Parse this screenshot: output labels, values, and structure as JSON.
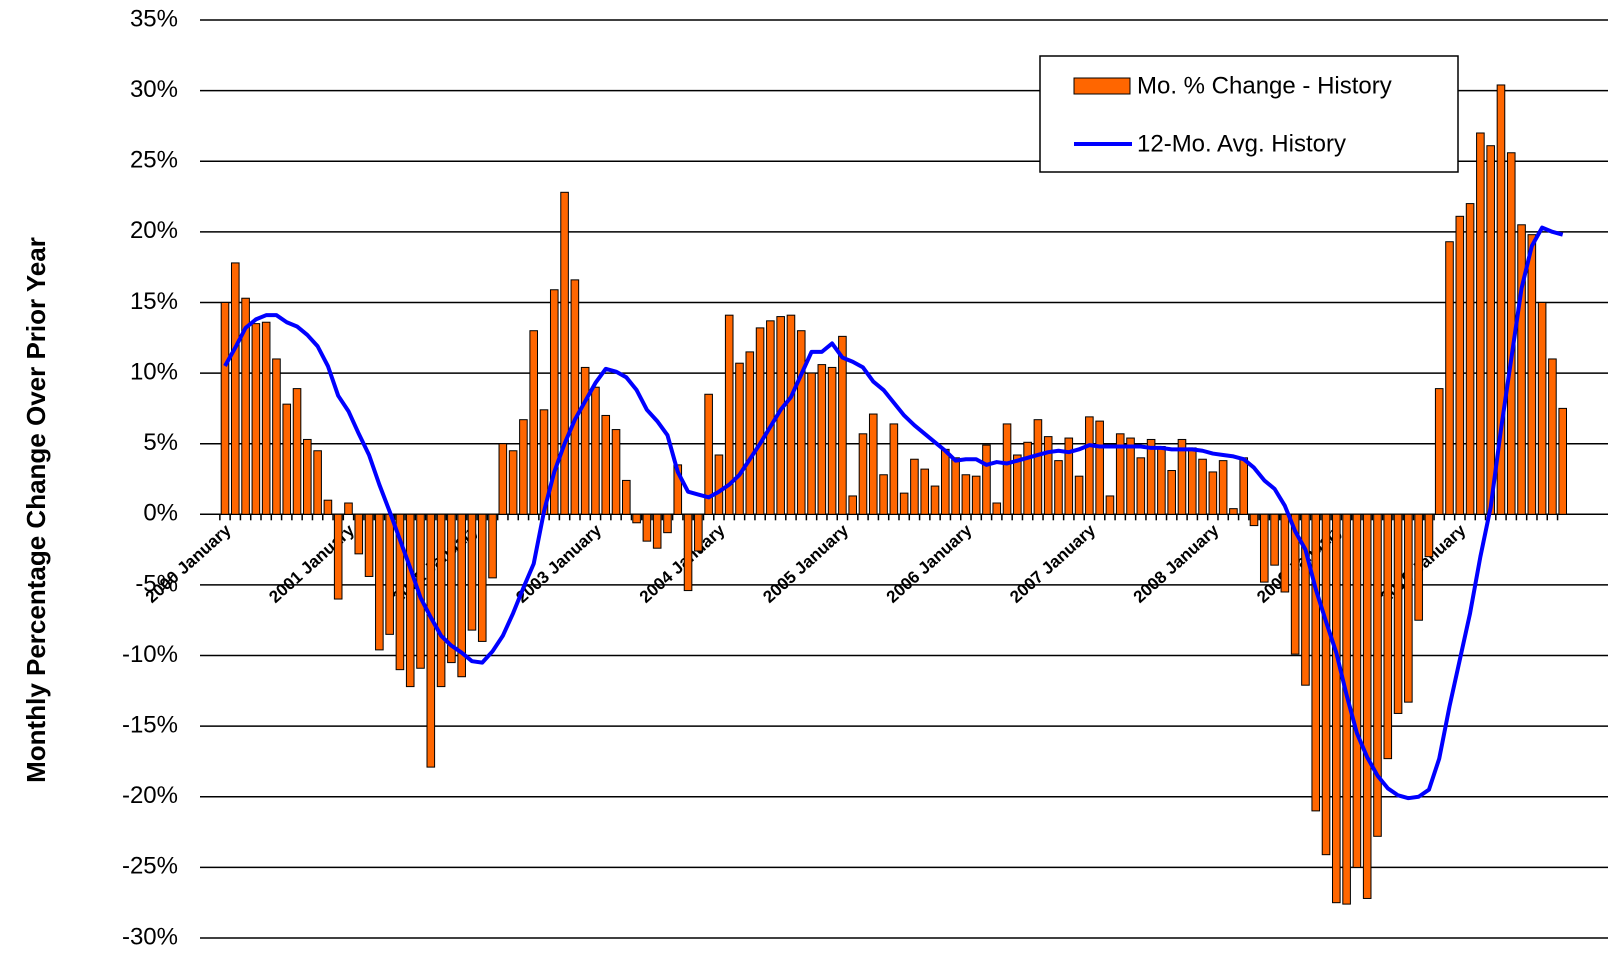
{
  "chart_data": {
    "type": "bar_line",
    "ylabel": "Monthly Percentage Change Over Prior Year",
    "categories": [
      "2000 January",
      null,
      null,
      null,
      null,
      null,
      null,
      null,
      null,
      null,
      null,
      null,
      "2001 January",
      null,
      null,
      null,
      null,
      null,
      null,
      null,
      null,
      null,
      null,
      null,
      "2002 January",
      null,
      null,
      null,
      null,
      null,
      null,
      null,
      null,
      null,
      null,
      null,
      "2003 January",
      null,
      null,
      null,
      null,
      null,
      null,
      null,
      null,
      null,
      null,
      null,
      "2004 January",
      null,
      null,
      null,
      null,
      null,
      null,
      null,
      null,
      null,
      null,
      null,
      "2005 January",
      null,
      null,
      null,
      null,
      null,
      null,
      null,
      null,
      null,
      null,
      null,
      "2006 January",
      null,
      null,
      null,
      null,
      null,
      null,
      null,
      null,
      null,
      null,
      null,
      "2007 January",
      null,
      null,
      null,
      null,
      null,
      null,
      null,
      null,
      null,
      null,
      null,
      "2008 January",
      null,
      null,
      null,
      null,
      null,
      null,
      null,
      null,
      null,
      null,
      null,
      "2009 January",
      null,
      null,
      null,
      null,
      null,
      null,
      null,
      null,
      null,
      null,
      null,
      "2010 January",
      null,
      null,
      null,
      null,
      null,
      null,
      null,
      null,
      null,
      null
    ],
    "series": [
      {
        "name": "Mo. % Change - History",
        "kind": "bar",
        "color": "#ff6600",
        "values": [
          15.0,
          17.8,
          15.3,
          13.5,
          13.6,
          11.0,
          7.8,
          8.9,
          5.3,
          4.5,
          1.0,
          -6.0,
          0.8,
          -2.8,
          -4.4,
          -9.6,
          -8.5,
          -11.0,
          -12.2,
          -10.9,
          -17.9,
          -12.2,
          -10.5,
          -11.5,
          -8.2,
          -9.0,
          -4.5,
          5.0,
          4.5,
          6.7,
          13.0,
          7.4,
          15.9,
          22.8,
          16.6,
          10.4,
          9.0,
          7.0,
          6.0,
          2.4,
          -0.6,
          -1.9,
          -2.4,
          -1.3,
          3.5,
          -5.4,
          -2.6,
          8.5,
          4.2,
          14.1,
          10.7,
          11.5,
          13.2,
          13.7,
          14.0,
          14.1,
          13.0,
          10.0,
          10.6,
          10.4,
          12.6,
          1.3,
          5.7,
          7.1,
          2.8,
          6.4,
          1.5,
          3.9,
          3.2,
          2.0,
          4.6,
          4.0,
          2.8,
          2.7,
          4.9,
          0.8,
          6.4,
          4.2,
          5.1,
          6.7,
          5.5,
          3.8,
          5.4,
          2.7,
          6.9,
          6.6,
          1.3,
          5.7,
          5.4,
          4.0,
          5.3,
          4.8,
          3.1,
          5.3,
          4.7,
          3.9,
          3.0,
          3.8,
          0.4,
          4.0,
          -0.8,
          -4.8,
          -3.6,
          -5.5,
          -9.9,
          -12.1,
          -21.0,
          -24.1,
          -27.5,
          -27.6,
          -25.0,
          -27.2,
          -22.8,
          -17.3,
          -14.1,
          -13.3,
          -7.5,
          -3.0,
          8.9,
          19.3,
          21.1,
          22.0,
          27.0,
          26.1,
          30.4,
          25.6,
          20.5,
          19.8,
          15.0,
          11.0,
          7.5
        ]
      },
      {
        "name": "12-Mo. Avg. History",
        "kind": "line",
        "color": "#0000ff",
        "values": [
          10.5,
          11.8,
          13.2,
          13.8,
          14.1,
          14.1,
          13.6,
          13.3,
          12.7,
          11.9,
          10.5,
          8.4,
          7.3,
          5.7,
          4.2,
          2.1,
          0.2,
          -1.8,
          -3.8,
          -5.9,
          -7.3,
          -8.6,
          -9.3,
          -9.8,
          -10.4,
          -10.5,
          -9.7,
          -8.6,
          -7.0,
          -5.2,
          -3.5,
          0.2,
          3.0,
          5.0,
          6.7,
          8.0,
          9.3,
          10.3,
          10.1,
          9.7,
          8.8,
          7.4,
          6.6,
          5.6,
          3.0,
          1.6,
          1.4,
          1.2,
          1.6,
          2.1,
          2.8,
          3.9,
          5.0,
          6.2,
          7.4,
          8.3,
          9.9,
          11.5,
          11.5,
          12.1,
          11.1,
          10.8,
          10.4,
          9.4,
          8.8,
          7.9,
          7.0,
          6.3,
          5.7,
          5.1,
          4.5,
          3.8,
          3.9,
          3.9,
          3.5,
          3.7,
          3.6,
          3.8,
          4.0,
          4.2,
          4.4,
          4.5,
          4.4,
          4.6,
          4.9,
          4.8,
          4.8,
          4.8,
          4.8,
          4.8,
          4.7,
          4.7,
          4.6,
          4.6,
          4.6,
          4.5,
          4.3,
          4.2,
          4.1,
          3.9,
          3.3,
          2.4,
          1.8,
          0.6,
          -1.2,
          -2.5,
          -5.3,
          -7.6,
          -9.8,
          -12.8,
          -15.5,
          -17.2,
          -18.5,
          -19.4,
          -19.9,
          -20.1,
          -20.0,
          -19.5,
          -17.3,
          -13.6,
          -10.3,
          -7.0,
          -3.0,
          0.5,
          6.0,
          11.0,
          16.0,
          19.0,
          20.3,
          20.0,
          19.8
        ]
      }
    ],
    "ylim": [
      -30,
      35
    ],
    "yticks": [
      {
        "value": -30,
        "label": "-30%"
      },
      {
        "value": -25,
        "label": "-25%"
      },
      {
        "value": -20,
        "label": "-20%"
      },
      {
        "value": -15,
        "label": "-15%"
      },
      {
        "value": -10,
        "label": "-10%"
      },
      {
        "value": -5,
        "label": "-5%"
      },
      {
        "value": 0,
        "label": "0%"
      },
      {
        "value": 5,
        "label": "5%"
      },
      {
        "value": 10,
        "label": "10%"
      },
      {
        "value": 15,
        "label": "15%"
      },
      {
        "value": 20,
        "label": "20%"
      },
      {
        "value": 25,
        "label": "25%"
      },
      {
        "value": 30,
        "label": "30%"
      },
      {
        "value": 35,
        "label": "35%"
      }
    ],
    "grid": true,
    "legend": "upper right"
  }
}
